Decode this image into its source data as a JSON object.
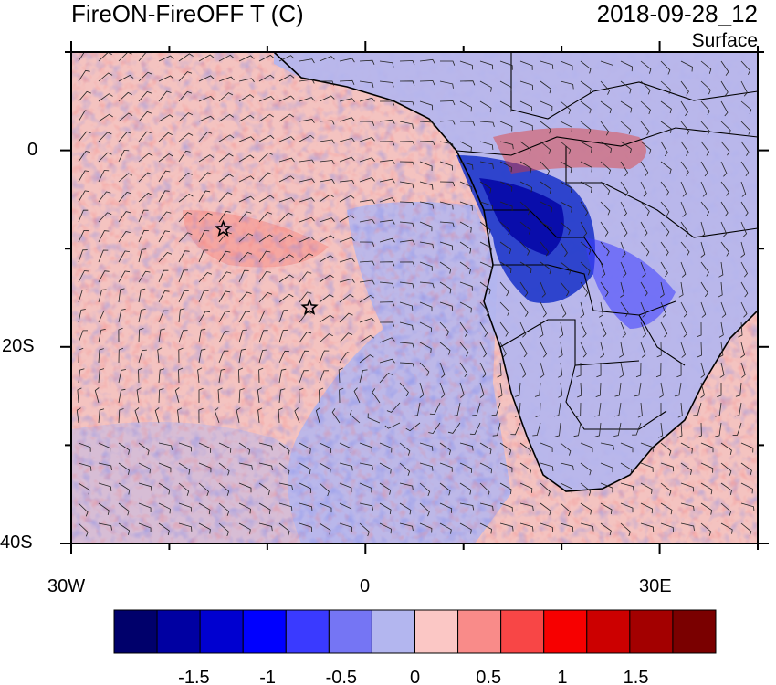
{
  "header": {
    "title": "FireON-FireOFF T (C)",
    "datetime": "2018-09-28_12",
    "level": "Surface"
  },
  "map": {
    "lon_range": [
      -30,
      40
    ],
    "lat_range": [
      -40,
      10
    ],
    "lon_ticks": [
      {
        "value": -30,
        "label": "30W"
      },
      {
        "value": 0,
        "label": "0"
      },
      {
        "value": 30,
        "label": "30E"
      }
    ],
    "lat_ticks": [
      {
        "value": 0,
        "label": "0"
      },
      {
        "value": -20,
        "label": "20S"
      },
      {
        "value": -40,
        "label": "40S"
      }
    ],
    "markers": [
      {
        "type": "star",
        "lon": -14.5,
        "lat": -8
      },
      {
        "type": "star",
        "lon": -5.7,
        "lat": -16
      }
    ],
    "colors": {
      "ocean_base": "#f4c3c0",
      "land_base": "#b3b6ef",
      "strong_cool": "#1530c8",
      "warm": "#e23a2e",
      "barbs": "#222222"
    }
  },
  "colorbar": {
    "levels": [
      -1.75,
      -1.5,
      -1.25,
      -1,
      -0.75,
      -0.5,
      -0.25,
      0,
      0.25,
      0.5,
      0.75,
      1,
      1.25,
      1.5,
      1.75
    ],
    "colors": [
      "#00006b",
      "#0000a2",
      "#0000d0",
      "#0000ff",
      "#3a3aff",
      "#7575f4",
      "#b3b6ef",
      "#fbc7c5",
      "#f98b89",
      "#f84646",
      "#f70000",
      "#cc0000",
      "#a30000",
      "#7a0000"
    ],
    "labels": [
      {
        "value": -1.5,
        "text": "-1.5"
      },
      {
        "value": -1,
        "text": "-1"
      },
      {
        "value": -0.5,
        "text": "-0.5"
      },
      {
        "value": 0,
        "text": "0"
      },
      {
        "value": 0.5,
        "text": "0.5"
      },
      {
        "value": 1,
        "text": "1"
      },
      {
        "value": 1.5,
        "text": "1.5"
      }
    ]
  }
}
